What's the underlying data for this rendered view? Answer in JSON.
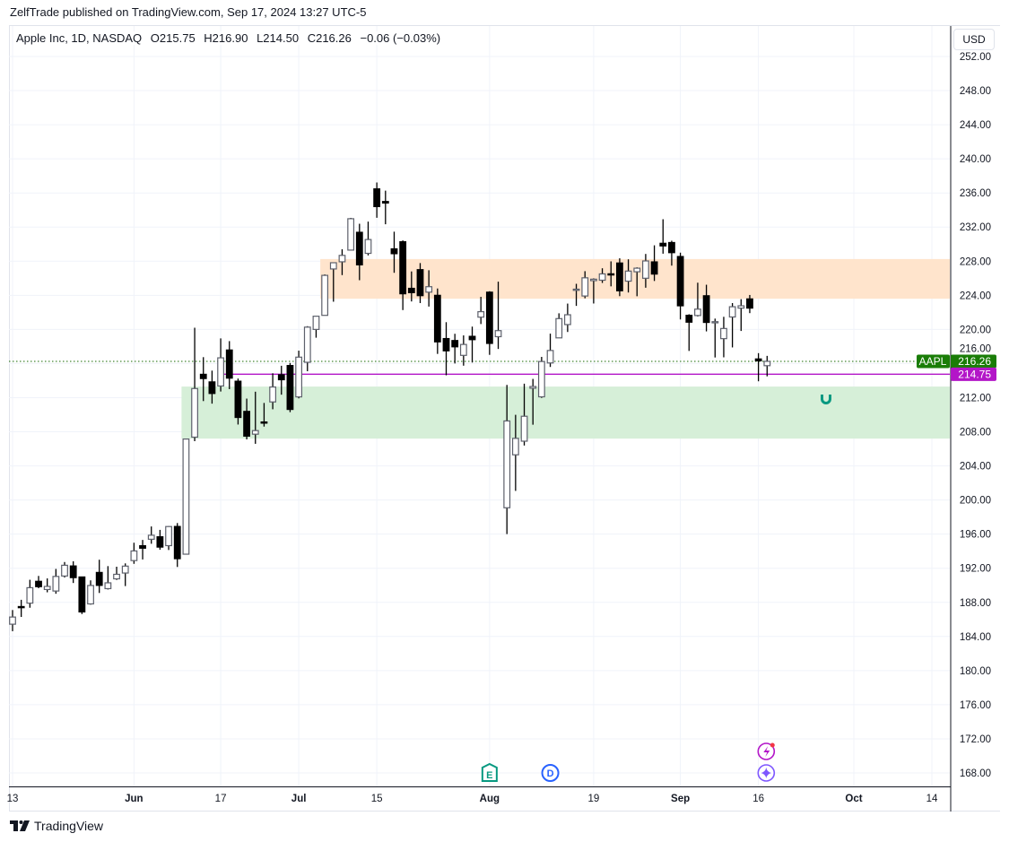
{
  "header": {
    "published": "ZelfTrade published on TradingView.com, Sep 17, 2024 13:27 UTC-5",
    "symbol": "Apple Inc, 1D, NASDAQ",
    "open": "O215.75",
    "high": "H216.90",
    "low": "L214.50",
    "close": "C216.26",
    "change": "−0.06 (−0.03%)"
  },
  "currency_button": "USD",
  "footer": {
    "brand": "TradingView"
  },
  "colors": {
    "up_border": "#5d606b",
    "down_fill": "#000000",
    "resistance_zone": "#ffe4cc",
    "support_zone": "#d6efd8",
    "horizontal_line": "#b316c8",
    "last_price": "#1a7d07",
    "grid": "#f0f3fa"
  },
  "chart_data": {
    "type": "candlestick",
    "title": "Apple Inc, 1D, NASDAQ",
    "ylim": [
      166,
      254
    ],
    "y_ticks": [
      "168.00",
      "172.00",
      "176.00",
      "180.00",
      "184.00",
      "188.00",
      "192.00",
      "196.00",
      "200.00",
      "204.00",
      "208.00",
      "212.00",
      "216.00",
      "220.00",
      "224.00",
      "228.00",
      "232.00",
      "236.00",
      "240.00",
      "244.00",
      "248.00",
      "252.00"
    ],
    "x_ticks": [
      {
        "label": "13",
        "date": "2024-05-13",
        "bold": false
      },
      {
        "label": "Jun",
        "date": "2024-06-03",
        "bold": true
      },
      {
        "label": "17",
        "date": "2024-06-17",
        "bold": false
      },
      {
        "label": "Jul",
        "date": "2024-07-01",
        "bold": true
      },
      {
        "label": "15",
        "date": "2024-07-15",
        "bold": false
      },
      {
        "label": "Aug",
        "date": "2024-08-01",
        "bold": true
      },
      {
        "label": "19",
        "date": "2024-08-19",
        "bold": false
      },
      {
        "label": "Sep",
        "date": "2024-09-03",
        "bold": true
      },
      {
        "label": "16",
        "date": "2024-09-16",
        "bold": false
      },
      {
        "label": "Oct",
        "date": "2024-10-01",
        "bold": true
      },
      {
        "label": "14",
        "date": "2024-10-14",
        "bold": false
      }
    ],
    "grid": true,
    "dates": [
      "2024-05-13",
      "2024-05-14",
      "2024-05-15",
      "2024-05-16",
      "2024-05-17",
      "2024-05-20",
      "2024-05-21",
      "2024-05-22",
      "2024-05-23",
      "2024-05-24",
      "2024-05-28",
      "2024-05-29",
      "2024-05-30",
      "2024-05-31",
      "2024-06-03",
      "2024-06-04",
      "2024-06-05",
      "2024-06-06",
      "2024-06-07",
      "2024-06-10",
      "2024-06-11",
      "2024-06-12",
      "2024-06-13",
      "2024-06-14",
      "2024-06-17",
      "2024-06-18",
      "2024-06-20",
      "2024-06-21",
      "2024-06-24",
      "2024-06-25",
      "2024-06-26",
      "2024-06-27",
      "2024-06-28",
      "2024-07-01",
      "2024-07-02",
      "2024-07-03",
      "2024-07-05",
      "2024-07-08",
      "2024-07-09",
      "2024-07-10",
      "2024-07-11",
      "2024-07-12",
      "2024-07-15",
      "2024-07-16",
      "2024-07-17",
      "2024-07-18",
      "2024-07-19",
      "2024-07-22",
      "2024-07-23",
      "2024-07-24",
      "2024-07-25",
      "2024-07-26",
      "2024-07-29",
      "2024-07-30",
      "2024-07-31",
      "2024-08-01",
      "2024-08-02",
      "2024-08-05",
      "2024-08-06",
      "2024-08-07",
      "2024-08-08",
      "2024-08-09",
      "2024-08-12",
      "2024-08-13",
      "2024-08-14",
      "2024-08-15",
      "2024-08-16",
      "2024-08-19",
      "2024-08-20",
      "2024-08-21",
      "2024-08-22",
      "2024-08-23",
      "2024-08-26",
      "2024-08-27",
      "2024-08-28",
      "2024-08-29",
      "2024-08-30",
      "2024-09-03",
      "2024-09-04",
      "2024-09-05",
      "2024-09-06",
      "2024-09-09",
      "2024-09-10",
      "2024-09-11",
      "2024-09-12",
      "2024-09-13",
      "2024-09-16",
      "2024-09-17"
    ],
    "ohlc": [
      [
        185.44,
        187.1,
        184.62,
        186.28
      ],
      [
        187.51,
        188.3,
        186.29,
        187.43
      ],
      [
        187.91,
        190.65,
        187.37,
        189.72
      ],
      [
        190.47,
        191.1,
        189.66,
        189.84
      ],
      [
        189.51,
        190.81,
        189.18,
        189.87
      ],
      [
        189.33,
        191.92,
        189.01,
        191.04
      ],
      [
        191.09,
        192.73,
        190.92,
        192.35
      ],
      [
        192.27,
        192.82,
        190.27,
        190.9
      ],
      [
        190.98,
        191.0,
        186.63,
        186.88
      ],
      [
        187.82,
        190.58,
        187.73,
        189.98
      ],
      [
        191.51,
        193.0,
        189.1,
        189.99
      ],
      [
        189.61,
        192.25,
        189.51,
        190.29
      ],
      [
        190.76,
        192.18,
        190.63,
        191.29
      ],
      [
        191.44,
        192.57,
        189.91,
        192.25
      ],
      [
        192.9,
        194.99,
        192.52,
        194.03
      ],
      [
        194.64,
        195.32,
        193.03,
        194.35
      ],
      [
        195.4,
        196.9,
        194.87,
        195.87
      ],
      [
        195.69,
        196.5,
        194.17,
        194.48
      ],
      [
        194.65,
        196.94,
        194.14,
        196.89
      ],
      [
        196.9,
        197.3,
        192.15,
        193.12
      ],
      [
        193.65,
        207.16,
        193.63,
        207.15
      ],
      [
        207.37,
        220.2,
        206.9,
        213.07
      ],
      [
        214.74,
        216.75,
        211.6,
        214.24
      ],
      [
        213.85,
        215.17,
        211.3,
        212.49
      ],
      [
        213.37,
        218.95,
        212.72,
        216.67
      ],
      [
        217.59,
        218.63,
        213.0,
        214.29
      ],
      [
        213.93,
        214.24,
        208.85,
        209.68
      ],
      [
        210.39,
        211.89,
        207.11,
        207.49
      ],
      [
        207.72,
        212.7,
        206.59,
        208.14
      ],
      [
        209.15,
        211.38,
        208.61,
        209.07
      ],
      [
        211.5,
        214.86,
        210.64,
        213.25
      ],
      [
        214.69,
        215.74,
        212.35,
        214.1
      ],
      [
        215.77,
        216.07,
        210.3,
        210.62
      ],
      [
        212.09,
        217.51,
        211.92,
        216.75
      ],
      [
        216.15,
        220.38,
        215.1,
        220.27
      ],
      [
        220.0,
        221.55,
        219.03,
        221.55
      ],
      [
        221.65,
        226.45,
        221.65,
        226.34
      ],
      [
        227.09,
        227.85,
        223.25,
        227.82
      ],
      [
        227.93,
        229.4,
        226.37,
        228.68
      ],
      [
        229.3,
        233.08,
        229.25,
        232.98
      ],
      [
        231.39,
        232.39,
        225.77,
        227.57
      ],
      [
        228.92,
        232.64,
        228.68,
        230.54
      ],
      [
        236.48,
        237.23,
        233.09,
        234.4
      ],
      [
        235.0,
        236.27,
        232.33,
        234.82
      ],
      [
        229.45,
        231.46,
        226.64,
        228.88
      ],
      [
        230.28,
        230.44,
        222.27,
        224.18
      ],
      [
        224.82,
        226.8,
        223.28,
        224.31
      ],
      [
        227.01,
        227.78,
        223.09,
        223.96
      ],
      [
        224.37,
        226.94,
        222.68,
        225.01
      ],
      [
        224.0,
        224.8,
        217.13,
        218.54
      ],
      [
        218.93,
        220.85,
        214.62,
        217.49
      ],
      [
        218.7,
        219.49,
        216.01,
        217.96
      ],
      [
        216.96,
        219.3,
        215.75,
        218.24
      ],
      [
        219.19,
        220.33,
        216.12,
        218.8
      ],
      [
        221.44,
        223.82,
        220.63,
        222.08
      ],
      [
        224.37,
        224.48,
        217.02,
        218.36
      ],
      [
        219.15,
        225.6,
        217.71,
        219.86
      ],
      [
        199.09,
        213.5,
        196.0,
        209.27
      ],
      [
        205.3,
        209.99,
        201.07,
        207.23
      ],
      [
        206.9,
        213.64,
        206.39,
        209.82
      ],
      [
        213.11,
        214.2,
        208.83,
        213.31
      ],
      [
        212.1,
        216.78,
        211.97,
        216.24
      ],
      [
        216.07,
        219.51,
        215.6,
        217.53
      ],
      [
        219.01,
        221.89,
        219.01,
        221.27
      ],
      [
        220.57,
        223.03,
        219.7,
        221.72
      ],
      [
        224.6,
        225.35,
        222.76,
        224.72
      ],
      [
        223.92,
        226.83,
        223.65,
        226.05
      ],
      [
        225.72,
        225.99,
        223.04,
        225.89
      ],
      [
        225.77,
        227.17,
        225.45,
        226.51
      ],
      [
        226.52,
        227.98,
        225.05,
        226.4
      ],
      [
        227.79,
        228.34,
        223.9,
        224.53
      ],
      [
        225.66,
        228.22,
        224.33,
        226.84
      ],
      [
        226.76,
        227.28,
        223.89,
        227.18
      ],
      [
        226.0,
        228.85,
        224.89,
        228.03
      ],
      [
        227.92,
        229.86,
        225.68,
        226.49
      ],
      [
        230.1,
        232.92,
        228.88,
        229.79
      ],
      [
        230.19,
        230.4,
        227.48,
        229.0
      ],
      [
        228.55,
        229.0,
        221.17,
        222.77
      ],
      [
        221.66,
        221.78,
        217.48,
        220.85
      ],
      [
        221.63,
        225.48,
        221.52,
        222.38
      ],
      [
        223.95,
        225.24,
        219.77,
        220.82
      ],
      [
        220.82,
        221.27,
        216.71,
        220.91
      ],
      [
        218.92,
        221.48,
        216.73,
        220.11
      ],
      [
        221.46,
        223.09,
        217.89,
        222.66
      ],
      [
        222.5,
        223.55,
        219.82,
        222.77
      ],
      [
        223.58,
        224.04,
        221.91,
        222.5
      ],
      [
        216.54,
        217.22,
        213.92,
        216.32
      ],
      [
        215.75,
        216.9,
        214.5,
        216.26
      ]
    ],
    "zones": [
      {
        "name": "resistance-zone",
        "from_date": "2024-07-05",
        "top": 228.25,
        "bottom": 223.6
      },
      {
        "name": "support-zone",
        "from_date": "2024-06-11",
        "top": 213.3,
        "bottom": 207.2
      }
    ],
    "horizontal_line": {
      "from_date": "2024-06-17",
      "value": 214.75,
      "label": "214.75"
    },
    "last_price": {
      "symbol": "AAPL",
      "value": 216.26,
      "label": "216.26"
    },
    "events": [
      {
        "type": "earnings",
        "letter": "E",
        "date": "2024-08-01"
      },
      {
        "type": "dividend",
        "letter": "D",
        "date": "2024-08-12"
      },
      {
        "type": "news-flash",
        "date": "2024-09-17"
      },
      {
        "type": "ideas-star",
        "date": "2024-09-17"
      }
    ]
  }
}
